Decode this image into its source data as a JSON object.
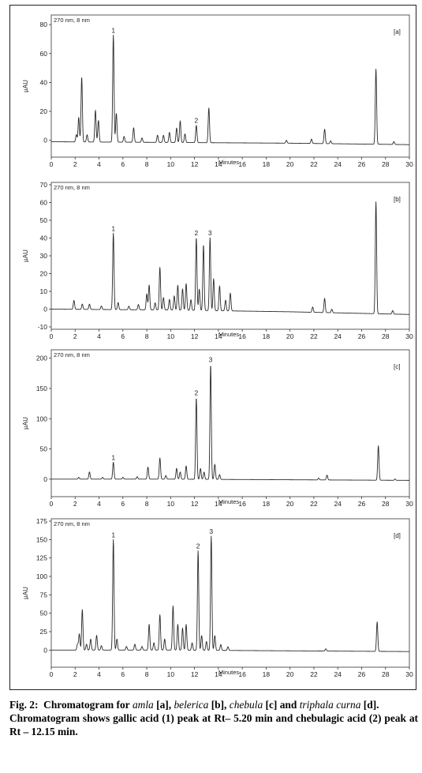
{
  "chart_data": [
    {
      "type": "line",
      "panel_label": "[a]",
      "annotation": "270 nm, 8 nm",
      "ylabel": "µAU",
      "xlabel": "Minutes",
      "xlim": [
        0,
        30
      ],
      "ylim": [
        -10,
        85
      ],
      "x_ticks": [
        0,
        2,
        4,
        6,
        8,
        10,
        12,
        14,
        16,
        18,
        20,
        22,
        24,
        26,
        28,
        30
      ],
      "y_ticks": [
        0,
        20,
        40,
        60,
        80
      ],
      "baseline": [
        [
          0,
          -1
        ],
        [
          10,
          -1.5
        ],
        [
          20,
          -2
        ],
        [
          30,
          -3
        ]
      ],
      "peaks": [
        {
          "t": 2.1,
          "h": 5
        },
        {
          "t": 2.3,
          "h": 17
        },
        {
          "t": 2.55,
          "h": 45
        },
        {
          "t": 3.0,
          "h": 5
        },
        {
          "t": 3.7,
          "h": 22
        },
        {
          "t": 3.95,
          "h": 15
        },
        {
          "t": 5.2,
          "h": 74,
          "label": "1"
        },
        {
          "t": 5.45,
          "h": 20
        },
        {
          "t": 6.1,
          "h": 4
        },
        {
          "t": 6.9,
          "h": 10
        },
        {
          "t": 7.6,
          "h": 3
        },
        {
          "t": 8.9,
          "h": 5
        },
        {
          "t": 9.4,
          "h": 5
        },
        {
          "t": 9.9,
          "h": 7
        },
        {
          "t": 10.5,
          "h": 10
        },
        {
          "t": 10.8,
          "h": 15
        },
        {
          "t": 11.2,
          "h": 6
        },
        {
          "t": 12.15,
          "h": 12,
          "label": "2"
        },
        {
          "t": 13.2,
          "h": 24
        },
        {
          "t": 19.7,
          "h": 2
        },
        {
          "t": 21.8,
          "h": 3
        },
        {
          "t": 22.9,
          "h": 10
        },
        {
          "t": 23.4,
          "h": 2
        },
        {
          "t": 27.2,
          "h": 52
        },
        {
          "t": 28.7,
          "h": 2
        }
      ]
    },
    {
      "type": "line",
      "panel_label": "[b]",
      "annotation": "270 nm, 8 nm",
      "ylabel": "µAU",
      "xlabel": "Minutes",
      "xlim": [
        0,
        30
      ],
      "ylim": [
        -10,
        70
      ],
      "x_ticks": [
        0,
        2,
        4,
        6,
        8,
        10,
        12,
        14,
        16,
        18,
        20,
        22,
        24,
        26,
        28,
        30
      ],
      "y_ticks": [
        -10,
        0,
        10,
        20,
        30,
        40,
        50,
        60,
        70
      ],
      "baseline": [
        [
          0,
          0
        ],
        [
          10,
          -0.5
        ],
        [
          20,
          -1.5
        ],
        [
          30,
          -3
        ]
      ],
      "peaks": [
        {
          "t": 1.9,
          "h": 5
        },
        {
          "t": 2.6,
          "h": 3
        },
        {
          "t": 3.2,
          "h": 3
        },
        {
          "t": 4.2,
          "h": 2
        },
        {
          "t": 5.2,
          "h": 43,
          "label": "1"
        },
        {
          "t": 5.6,
          "h": 4
        },
        {
          "t": 6.5,
          "h": 2
        },
        {
          "t": 7.3,
          "h": 3
        },
        {
          "t": 8.0,
          "h": 9
        },
        {
          "t": 8.2,
          "h": 14
        },
        {
          "t": 8.7,
          "h": 4
        },
        {
          "t": 9.1,
          "h": 24
        },
        {
          "t": 9.4,
          "h": 7
        },
        {
          "t": 9.9,
          "h": 6
        },
        {
          "t": 10.3,
          "h": 8
        },
        {
          "t": 10.6,
          "h": 14
        },
        {
          "t": 11.0,
          "h": 12
        },
        {
          "t": 11.3,
          "h": 15
        },
        {
          "t": 11.7,
          "h": 6
        },
        {
          "t": 12.15,
          "h": 41,
          "label": "2"
        },
        {
          "t": 12.4,
          "h": 12
        },
        {
          "t": 12.75,
          "h": 37
        },
        {
          "t": 13.3,
          "h": 41,
          "label": "3"
        },
        {
          "t": 13.6,
          "h": 18
        },
        {
          "t": 14.1,
          "h": 14
        },
        {
          "t": 14.6,
          "h": 6
        },
        {
          "t": 15.0,
          "h": 10
        },
        {
          "t": 21.9,
          "h": 3
        },
        {
          "t": 22.9,
          "h": 8
        },
        {
          "t": 23.5,
          "h": 2
        },
        {
          "t": 27.2,
          "h": 63
        },
        {
          "t": 28.6,
          "h": 2
        }
      ]
    },
    {
      "type": "line",
      "panel_label": "[c]",
      "annotation": "270 nm, 8 nm",
      "ylabel": "µAU",
      "xlabel": "Minutes",
      "xlim": [
        0,
        30
      ],
      "ylim": [
        -25,
        210
      ],
      "x_ticks": [
        0,
        2,
        4,
        6,
        8,
        10,
        12,
        14,
        16,
        18,
        20,
        22,
        24,
        26,
        28,
        30
      ],
      "y_ticks": [
        0,
        50,
        100,
        150,
        200
      ],
      "baseline": [
        [
          0,
          0
        ],
        [
          10,
          0
        ],
        [
          20,
          -1
        ],
        [
          30,
          -2
        ]
      ],
      "peaks": [
        {
          "t": 2.3,
          "h": 3
        },
        {
          "t": 3.2,
          "h": 12
        },
        {
          "t": 4.3,
          "h": 3
        },
        {
          "t": 5.2,
          "h": 28,
          "label": "1"
        },
        {
          "t": 6.0,
          "h": 3
        },
        {
          "t": 7.2,
          "h": 4
        },
        {
          "t": 8.1,
          "h": 20
        },
        {
          "t": 9.1,
          "h": 35
        },
        {
          "t": 9.6,
          "h": 6
        },
        {
          "t": 10.5,
          "h": 18
        },
        {
          "t": 10.8,
          "h": 12
        },
        {
          "t": 11.3,
          "h": 22
        },
        {
          "t": 12.15,
          "h": 135,
          "label": "2"
        },
        {
          "t": 12.5,
          "h": 18
        },
        {
          "t": 12.8,
          "h": 12
        },
        {
          "t": 13.35,
          "h": 190,
          "label": "3"
        },
        {
          "t": 13.7,
          "h": 25
        },
        {
          "t": 14.1,
          "h": 8
        },
        {
          "t": 22.4,
          "h": 3
        },
        {
          "t": 23.1,
          "h": 8
        },
        {
          "t": 27.4,
          "h": 57
        },
        {
          "t": 28.8,
          "h": 2
        }
      ]
    },
    {
      "type": "line",
      "panel_label": "[d]",
      "annotation": "270 nm, 8 nm",
      "ylabel": "µAU",
      "xlabel": "Minutes",
      "xlim": [
        0,
        30
      ],
      "ylim": [
        -20,
        175
      ],
      "x_ticks": [
        0,
        2,
        4,
        6,
        8,
        10,
        12,
        14,
        16,
        18,
        20,
        22,
        24,
        26,
        28,
        30
      ],
      "y_ticks": [
        0,
        25,
        50,
        75,
        100,
        125,
        150,
        175
      ],
      "baseline": [
        [
          0,
          0
        ],
        [
          10,
          0
        ],
        [
          20,
          -1
        ],
        [
          30,
          -2
        ]
      ],
      "peaks": [
        {
          "t": 2.2,
          "h": 8
        },
        {
          "t": 2.35,
          "h": 22
        },
        {
          "t": 2.6,
          "h": 55
        },
        {
          "t": 2.95,
          "h": 8
        },
        {
          "t": 3.3,
          "h": 15
        },
        {
          "t": 3.8,
          "h": 20
        },
        {
          "t": 4.2,
          "h": 6
        },
        {
          "t": 5.2,
          "h": 150,
          "label": "1"
        },
        {
          "t": 5.5,
          "h": 15
        },
        {
          "t": 6.3,
          "h": 5
        },
        {
          "t": 7.0,
          "h": 8
        },
        {
          "t": 7.6,
          "h": 5
        },
        {
          "t": 8.2,
          "h": 35
        },
        {
          "t": 8.6,
          "h": 10
        },
        {
          "t": 9.1,
          "h": 48
        },
        {
          "t": 9.5,
          "h": 15
        },
        {
          "t": 10.2,
          "h": 60
        },
        {
          "t": 10.6,
          "h": 35
        },
        {
          "t": 11.0,
          "h": 30
        },
        {
          "t": 11.3,
          "h": 35
        },
        {
          "t": 11.8,
          "h": 10
        },
        {
          "t": 12.3,
          "h": 135,
          "label": "2"
        },
        {
          "t": 12.6,
          "h": 20
        },
        {
          "t": 13.0,
          "h": 12
        },
        {
          "t": 13.4,
          "h": 155,
          "label": "3"
        },
        {
          "t": 13.7,
          "h": 20
        },
        {
          "t": 14.2,
          "h": 8
        },
        {
          "t": 14.8,
          "h": 5
        },
        {
          "t": 23.0,
          "h": 3
        },
        {
          "t": 27.3,
          "h": 40
        }
      ]
    }
  ],
  "caption": {
    "fig_number": "Fig. 2:",
    "line1_pre": "Chromatogram for",
    "amla": "amla",
    "label_a": "[a],",
    "belerica": "belerica",
    "label_b": "[b],",
    "chebula": "chebula",
    "label_c": "[c] and",
    "triphala": "triphala curna",
    "label_d": "[d].",
    "line3": "Chromatogram shows gallic acid (1) peak at Rt– 5.20 min and chebulagic acid (2) peak at Rt – 12.15 min."
  }
}
